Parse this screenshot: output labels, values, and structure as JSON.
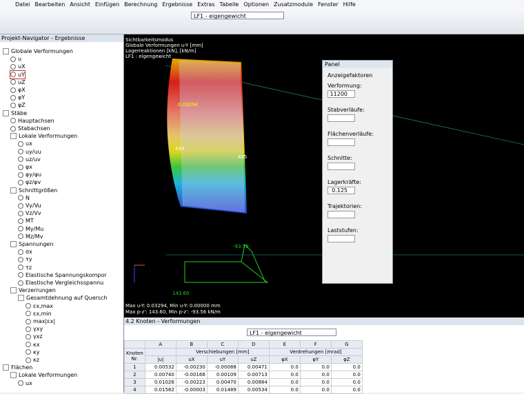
{
  "menu": [
    "Datei",
    "Bearbeiten",
    "Ansicht",
    "Einfügen",
    "Berechnung",
    "Ergebnisse",
    "Extras",
    "Tabelle",
    "Optionen",
    "Zusatzmodule",
    "Fenster",
    "Hilfe"
  ],
  "toolbar": {
    "load_case": "LF1 - eigengewicht"
  },
  "navigator": {
    "title": "Projekt-Navigator - Ergebnisse",
    "tree": [
      {
        "label": "Globale Verformungen",
        "children": [
          {
            "label": "u"
          },
          {
            "label": "uX"
          },
          {
            "label": "uY"
          },
          {
            "label": "uZ"
          },
          {
            "label": "φX"
          },
          {
            "label": "φY"
          },
          {
            "label": "φZ"
          }
        ]
      },
      {
        "label": "Stäbe",
        "children": [
          {
            "label": "Hauptachsen"
          },
          {
            "label": "Stabachsen"
          },
          {
            "label": "Lokale Verformungen",
            "children": [
              {
                "label": "ux"
              },
              {
                "label": "uy/uu"
              },
              {
                "label": "uz/uv"
              },
              {
                "label": "φx"
              },
              {
                "label": "φy/φu"
              },
              {
                "label": "φz/φv"
              }
            ]
          },
          {
            "label": "Schnittgrößen",
            "children": [
              {
                "label": "N"
              },
              {
                "label": "Vy/Vu"
              },
              {
                "label": "Vz/Vv"
              },
              {
                "label": "MT"
              },
              {
                "label": "My/Mu"
              },
              {
                "label": "Mz/Mv"
              }
            ]
          },
          {
            "label": "Spannungen",
            "children": [
              {
                "label": "σx"
              },
              {
                "label": "τy"
              },
              {
                "label": "τz"
              },
              {
                "label": "Elastische Spannungskompor"
              },
              {
                "label": "Elastische Vergleichsspannu"
              }
            ]
          },
          {
            "label": "Verzerrungen",
            "children": [
              {
                "label": "Gesamtdehnung auf Quersch",
                "children": [
                  {
                    "label": "εx,max"
                  },
                  {
                    "label": "εx,min"
                  },
                  {
                    "label": "max|εx|"
                  },
                  {
                    "label": "γxy"
                  },
                  {
                    "label": "γxz"
                  },
                  {
                    "label": "κx"
                  },
                  {
                    "label": "κy"
                  },
                  {
                    "label": "κz"
                  }
                ]
              }
            ]
          }
        ]
      },
      {
        "label": "Flächen",
        "children": [
          {
            "label": "Lokale Verformungen",
            "children": [
              {
                "label": "ux"
              }
            ]
          }
        ]
      }
    ]
  },
  "viewport": {
    "info": [
      "Sichtbarkeitsmodus",
      "Globale Verformungen u-Y [mm]",
      "Lagerreaktionen [kN], [kN/m]",
      "LF1 : eigengewicht"
    ],
    "footer": [
      "Max u-Y: 0.03294, Min u-Y: 0.00000 mm",
      "Max p-z': 143.60, Min p-z': -93.56 kN/m"
    ],
    "labels": [
      "434",
      "405",
      "-93.56",
      "143.60",
      "0.03294"
    ]
  },
  "panel": {
    "title": "Panel",
    "section": "Anzeigefaktoren",
    "fields": [
      {
        "label": "Verformung:",
        "value": "11200"
      },
      {
        "label": "Stabverläufe:"
      },
      {
        "label": "Flächenverläufe:"
      },
      {
        "label": "Schnitte:"
      },
      {
        "label": "Lagerkräfte:",
        "value": "0.125"
      },
      {
        "label": "Trajektorien:"
      },
      {
        "label": "Laststufen:"
      }
    ]
  },
  "table": {
    "title": "4.2 Knoten - Verformungen",
    "load_case": "LF1 - eigengewicht",
    "letters": [
      "A",
      "B",
      "C",
      "D",
      "E",
      "F",
      "G"
    ],
    "row_header": "Knoten Nr.",
    "groups": [
      "Verschiebungen [mm]",
      "Verdrehungen [mrad]"
    ],
    "subheads": [
      "|u|",
      "uX",
      "uY",
      "uZ",
      "φX",
      "φY",
      "φZ"
    ],
    "rows": [
      {
        "nr": "1",
        "cells": [
          "0.00532",
          "-0.00230",
          "-0.00088",
          "0.00471",
          "0.0",
          "0.0",
          "0.0"
        ]
      },
      {
        "nr": "2",
        "cells": [
          "0.00740",
          "-0.00166",
          "0.00109",
          "0.00713",
          "0.0",
          "0.0",
          "0.0"
        ]
      },
      {
        "nr": "3",
        "cells": [
          "0.01026",
          "-0.00223",
          "0.00470",
          "0.00884",
          "0.0",
          "0.0",
          "0.0"
        ]
      },
      {
        "nr": "4",
        "cells": [
          "0.01582",
          "-0.00003",
          "0.01489",
          "0.00534",
          "0.0",
          "0.0",
          "0.0"
        ]
      }
    ]
  }
}
